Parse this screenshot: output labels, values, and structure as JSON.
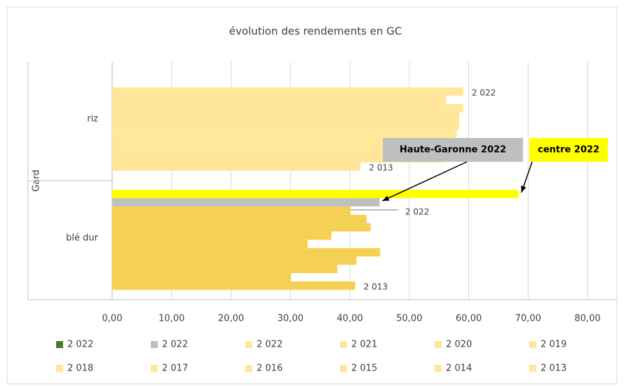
{
  "chart_data": {
    "type": "bar",
    "orientation": "horizontal",
    "title": "évolution des rendements en GC",
    "group_label": "Gard",
    "categories": [
      "riz",
      "blé dur"
    ],
    "series": [
      {
        "name": "2 022",
        "color": "#4e7a2e",
        "colors": [
          "#ffff00",
          "#ffff00"
        ],
        "values": [
          null,
          68.4
        ]
      },
      {
        "name": "2 022",
        "color": "#bfbfbf",
        "colors": [
          "#bfbfbf",
          "#bfbfbf"
        ],
        "values": [
          null,
          45.0
        ]
      },
      {
        "name": "2 022",
        "color": "#ffe699",
        "colors": [
          "#ffe699",
          "#f5d052"
        ],
        "values": [
          59.1,
          40.1
        ]
      },
      {
        "name": "2 021",
        "color": "#ffe699",
        "colors": [
          "#ffe699",
          "#f5d052"
        ],
        "values": [
          56.2,
          42.8
        ]
      },
      {
        "name": "2 020",
        "color": "#ffe699",
        "colors": [
          "#ffe699",
          "#f5d052"
        ],
        "values": [
          59.1,
          43.5
        ]
      },
      {
        "name": "2 019",
        "color": "#ffe699",
        "colors": [
          "#ffe699",
          "#f5d052"
        ],
        "values": [
          58.4,
          36.9
        ]
      },
      {
        "name": "2 018",
        "color": "#ffe699",
        "colors": [
          "#ffe699",
          "#f5d052"
        ],
        "values": [
          58.4,
          32.9
        ]
      },
      {
        "name": "2 017",
        "color": "#ffe699",
        "colors": [
          "#ffe699",
          "#f5d052"
        ],
        "values": [
          58.0,
          45.1
        ]
      },
      {
        "name": "2 016",
        "color": "#ffe699",
        "colors": [
          "#ffe699",
          "#f5d052"
        ],
        "values": [
          57.0,
          41.1
        ]
      },
      {
        "name": "2 015",
        "color": "#ffe699",
        "colors": [
          "#ffe699",
          "#f5d052"
        ],
        "values": [
          57.0,
          37.9
        ]
      },
      {
        "name": "2 014",
        "color": "#ffe699",
        "colors": [
          "#ffe699",
          "#f5d052"
        ],
        "values": [
          56.0,
          30.1
        ]
      },
      {
        "name": "2 013",
        "color": "#ffe699",
        "colors": [
          "#ffe699",
          "#f5d052"
        ],
        "values": [
          41.8,
          40.9
        ]
      }
    ],
    "xlim": [
      0,
      80
    ],
    "xticks": [
      {
        "value": 0,
        "label": "0,00"
      },
      {
        "value": 10,
        "label": "10,00"
      },
      {
        "value": 20,
        "label": "20,00"
      },
      {
        "value": 30,
        "label": "30,00"
      },
      {
        "value": 40,
        "label": "40,00"
      },
      {
        "value": 50,
        "label": "50,00"
      },
      {
        "value": 60,
        "label": "60,00"
      },
      {
        "value": 70,
        "label": "70,00"
      },
      {
        "value": 80,
        "label": "80,00"
      }
    ],
    "grid": true,
    "legend": "bottom",
    "annotations": [
      {
        "text": "Haute-Garonne 2022",
        "color": "#bfbfbf"
      },
      {
        "text": "centre 2022",
        "color": "#ffff00"
      }
    ]
  }
}
